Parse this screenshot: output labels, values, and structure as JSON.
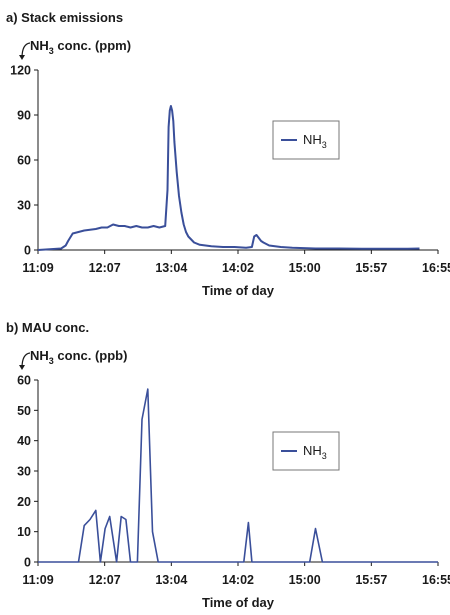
{
  "chart_data": [
    {
      "type": "line",
      "panel_title": "a) Stack emissions",
      "ylabel": {
        "main": "NH",
        "sub": "3",
        "rest": " conc. (ppm)"
      },
      "xlabel": "Time of day",
      "x_ticks": [
        "11:09",
        "12:07",
        "13:04",
        "14:02",
        "15:00",
        "15:57",
        "16:55"
      ],
      "xlim_min": [
        0,
        346
      ],
      "ylim": [
        0,
        120
      ],
      "y_ticks": [
        0,
        30,
        60,
        90,
        120
      ],
      "legend": {
        "label": "NH",
        "sub": "3",
        "position": "right"
      },
      "color": "#3a4f9a",
      "series": [
        {
          "name": "NH3",
          "x_min": [
            0,
            10,
            20,
            24,
            26,
            30,
            40,
            50,
            55,
            60,
            65,
            70,
            75,
            80,
            85,
            90,
            95,
            100,
            105,
            110,
            112,
            113,
            114,
            115,
            116,
            117,
            118,
            120,
            122,
            124,
            126,
            128,
            130,
            135,
            140,
            150,
            160,
            170,
            180,
            185,
            187,
            189,
            191,
            193,
            195,
            200,
            210,
            220,
            240,
            260,
            280,
            300,
            320,
            330
          ],
          "values": [
            0,
            0.5,
            1,
            3,
            6,
            11,
            13,
            14,
            15,
            15,
            17,
            16,
            16,
            15,
            16,
            15,
            15,
            16,
            15,
            16,
            40,
            82,
            93,
            96,
            93,
            86,
            72,
            52,
            36,
            25,
            17,
            12,
            9,
            5,
            3.5,
            2.5,
            2,
            2,
            1.5,
            2,
            9,
            10,
            8,
            6,
            5,
            3,
            2,
            1.5,
            1,
            1,
            0.8,
            0.8,
            0.8,
            1
          ]
        }
      ]
    },
    {
      "type": "line",
      "panel_title": "b) MAU conc.",
      "ylabel": {
        "main": "NH",
        "sub": "3",
        "rest": " conc. (ppb)"
      },
      "xlabel": "Time of day",
      "x_ticks": [
        "11:09",
        "12:07",
        "13:04",
        "14:02",
        "15:00",
        "15:57",
        "16:55"
      ],
      "xlim_min": [
        0,
        346
      ],
      "ylim": [
        0,
        60
      ],
      "y_ticks": [
        0,
        10,
        20,
        30,
        40,
        50,
        60
      ],
      "legend": {
        "label": "NH",
        "sub": "3",
        "position": "right"
      },
      "color": "#3a4f9a",
      "series": [
        {
          "name": "NH3",
          "x_min": [
            0,
            35,
            40,
            45,
            50,
            54,
            58,
            62,
            68,
            72,
            76,
            80,
            86,
            90,
            95,
            99,
            104,
            178,
            182,
            185,
            235,
            240,
            246,
            346
          ],
          "values": [
            0,
            0,
            12,
            14,
            17,
            0,
            11,
            15,
            0,
            15,
            14,
            0,
            0,
            47,
            57,
            10,
            0,
            0,
            13,
            0,
            0,
            11,
            0,
            0
          ]
        }
      ]
    }
  ]
}
